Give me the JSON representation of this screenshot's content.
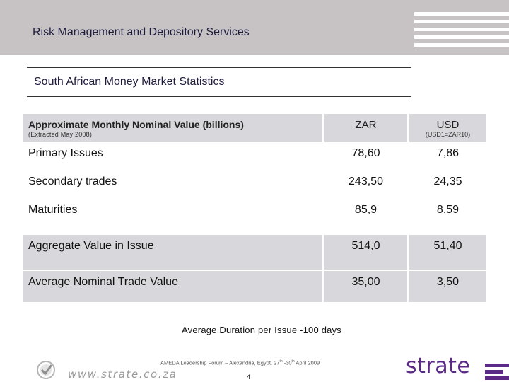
{
  "header": {
    "title": "Risk Management and Depository Services"
  },
  "subtitle": "South African Money Market Statistics",
  "table": {
    "header": {
      "label": "Approximate Monthly Nominal Value (billions)",
      "sublabel": "(Extracted May 2008)",
      "zar": "ZAR",
      "usd": "USD",
      "usd_note": "(USD1=ZAR10)"
    },
    "rows": [
      {
        "label": "Primary Issues",
        "zar": "78,60",
        "usd": "7,86"
      },
      {
        "label": "Secondary trades",
        "zar": "243,50",
        "usd": "24,35"
      },
      {
        "label": "Maturities",
        "zar": "85,9",
        "usd": "8,59"
      },
      {
        "label": "Aggregate Value in Issue",
        "zar": "514,0",
        "usd": "51,40"
      },
      {
        "label": "Average Nominal Trade Value",
        "zar": "35,00",
        "usd": "3,50"
      }
    ]
  },
  "note": "Average Duration per Issue -100 days",
  "footer": {
    "forum_prefix": "AMEDA Leadership Forum – Alexandria, Egypt, 27",
    "forum_sup1": "th",
    "forum_mid": " -30",
    "forum_sup2": "th",
    "forum_suffix": "  April 2009",
    "page_number": "4",
    "url": "www.strate.co.za",
    "logo_text": "strate"
  },
  "colors": {
    "header_band": "#c7c3c4",
    "brand_purple": "#5b2a86",
    "table_fill": "#d8d8dc"
  }
}
